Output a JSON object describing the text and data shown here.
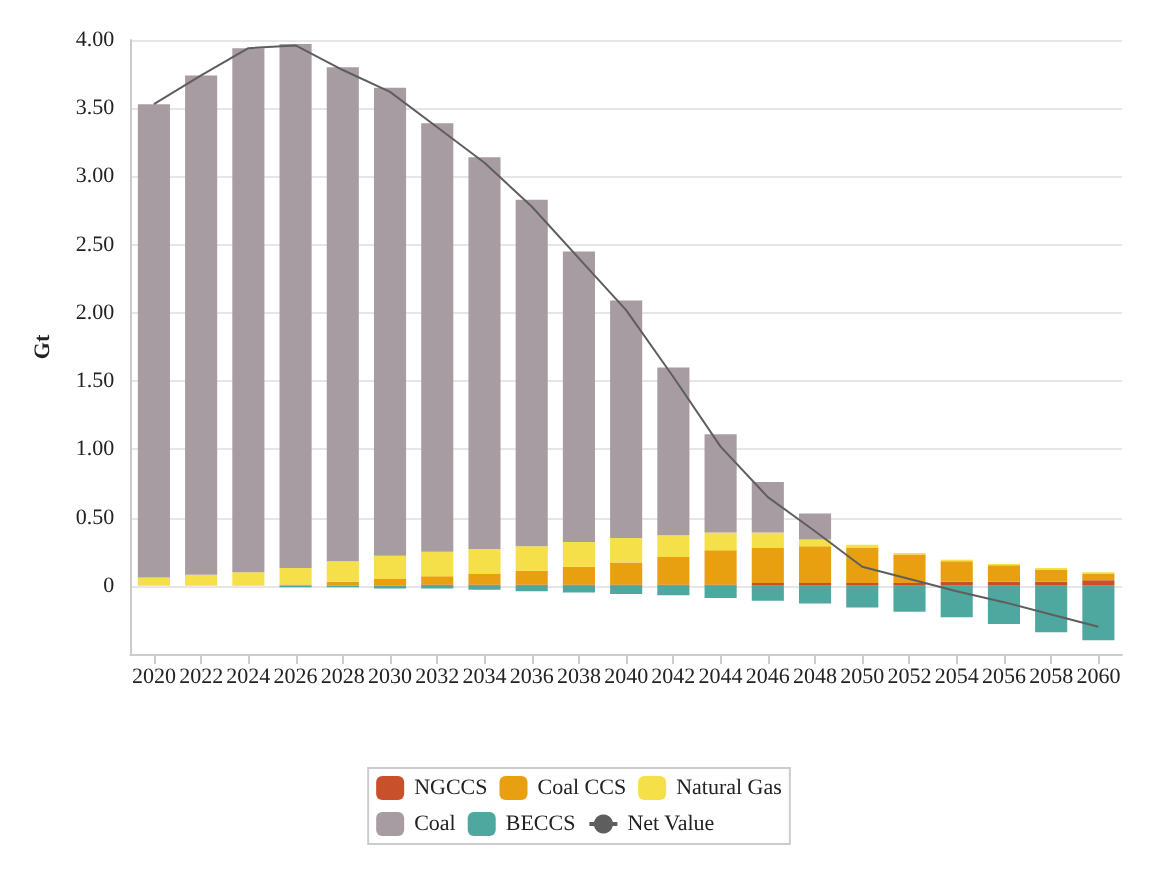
{
  "chart_data": {
    "type": "bar",
    "stacked": true,
    "ylabel": "Gt",
    "categories": [
      "2020",
      "2022",
      "2024",
      "2026",
      "2028",
      "2030",
      "2032",
      "2034",
      "2036",
      "2038",
      "2040",
      "2042",
      "2044",
      "2046",
      "2048",
      "2050",
      "2052",
      "2054",
      "2056",
      "2058",
      "2060"
    ],
    "series": [
      {
        "name": "NGCCS",
        "color": "#c8502a",
        "values": [
          0,
          0,
          0,
          0,
          0,
          0,
          0.01,
          0.01,
          0.01,
          0.01,
          0.01,
          0.01,
          0.01,
          0.02,
          0.02,
          0.02,
          0.02,
          0.03,
          0.03,
          0.03,
          0.04
        ]
      },
      {
        "name": "Coal CCS",
        "color": "#e8a010",
        "values": [
          0,
          0,
          0,
          0.01,
          0.03,
          0.05,
          0.06,
          0.08,
          0.1,
          0.13,
          0.16,
          0.2,
          0.25,
          0.26,
          0.27,
          0.26,
          0.21,
          0.15,
          0.12,
          0.09,
          0.05
        ]
      },
      {
        "name": "Natural Gas",
        "color": "#f5e04a",
        "values": [
          0.06,
          0.08,
          0.1,
          0.12,
          0.15,
          0.17,
          0.18,
          0.18,
          0.18,
          0.18,
          0.18,
          0.16,
          0.13,
          0.11,
          0.05,
          0.02,
          0.01,
          0.01,
          0.01,
          0.01,
          0.01
        ]
      },
      {
        "name": "Coal",
        "color": "#a89ca3",
        "values": [
          3.47,
          3.66,
          3.84,
          3.84,
          3.62,
          3.43,
          3.14,
          2.87,
          2.54,
          2.13,
          1.74,
          1.23,
          0.72,
          0.37,
          0.19,
          0,
          0,
          0,
          0,
          0,
          0
        ]
      },
      {
        "name": "BECCS",
        "color": "#4fa8a0",
        "values": [
          0,
          0,
          0,
          -0.01,
          -0.01,
          -0.02,
          -0.02,
          -0.03,
          -0.04,
          -0.05,
          -0.06,
          -0.07,
          -0.09,
          -0.11,
          -0.13,
          -0.16,
          -0.19,
          -0.23,
          -0.28,
          -0.34,
          -0.4
        ]
      },
      {
        "name": "Net Value",
        "type": "line",
        "color": "#5e5e5e",
        "values": [
          3.53,
          3.74,
          3.94,
          3.96,
          3.78,
          3.62,
          3.36,
          3.1,
          2.78,
          2.4,
          2.02,
          1.53,
          1.02,
          0.65,
          0.4,
          0.14,
          0.05,
          -0.04,
          -0.12,
          -0.21,
          -0.3
        ]
      }
    ],
    "ylim": [
      -0.5,
      4
    ],
    "yticks": [
      {
        "value": 0,
        "label": "0"
      },
      {
        "value": 0.5,
        "label": "0.50"
      },
      {
        "value": 1,
        "label": "1.00"
      },
      {
        "value": 1.5,
        "label": "1.50"
      },
      {
        "value": 2,
        "label": "2.00"
      },
      {
        "value": 2.5,
        "label": "2.50"
      },
      {
        "value": 3,
        "label": "3.00"
      },
      {
        "value": 3.5,
        "label": "3.50"
      },
      {
        "value": 4,
        "label": "4.00"
      }
    ],
    "grid": "y",
    "legend": "bottom",
    "marker": "none"
  }
}
